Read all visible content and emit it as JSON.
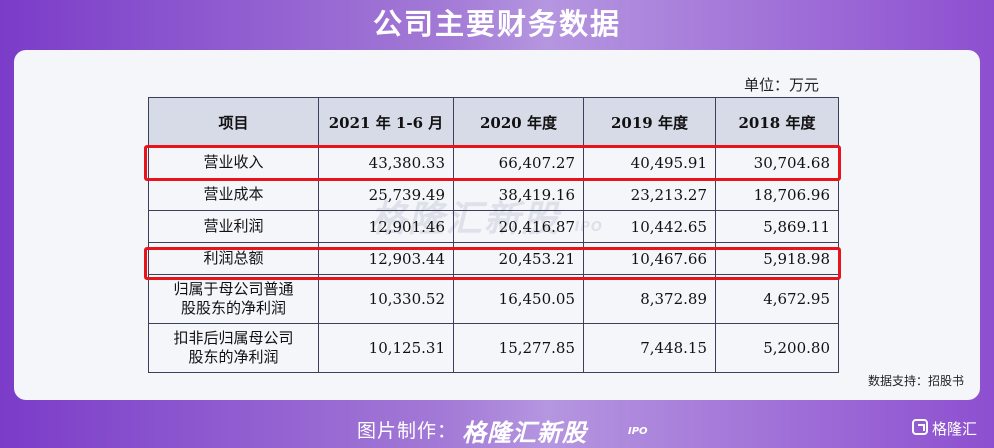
{
  "title": "公司主要财务数据",
  "unit": "单位：万元",
  "watermark": {
    "brand": "格隆汇新股",
    "tag": "IPO"
  },
  "table": {
    "headers": [
      "项目",
      "2021 年 1-6 月",
      "2020 年度",
      "2019 年度",
      "2018 年度"
    ],
    "rows": [
      {
        "label": "营业收入",
        "values": [
          "43,380.33",
          "66,407.27",
          "40,495.91",
          "30,704.68"
        ],
        "highlighted": true
      },
      {
        "label": "营业成本",
        "values": [
          "25,739.49",
          "38,419.16",
          "23,213.27",
          "18,706.96"
        ],
        "highlighted": false
      },
      {
        "label": "营业利润",
        "values": [
          "12,901.46",
          "20,416.87",
          "10,442.65",
          "5,869.11"
        ],
        "highlighted": false
      },
      {
        "label": "利润总额",
        "values": [
          "12,903.44",
          "20,453.21",
          "10,467.66",
          "5,918.98"
        ],
        "highlighted": true
      },
      {
        "label_line1": "归属于母公司普通",
        "label_line2": "股股东的净利润",
        "values": [
          "10,330.52",
          "16,450.05",
          "8,372.89",
          "4,672.95"
        ],
        "highlighted": false
      },
      {
        "label_line1": "扣非后归属母公司",
        "label_line2": "股东的净利润",
        "values": [
          "10,125.31",
          "15,277.85",
          "7,448.15",
          "5,200.80"
        ],
        "highlighted": false
      }
    ]
  },
  "highlight_color": "#e8141c",
  "source": "数据支持：招股书",
  "footer": {
    "made_by": "图片制作：",
    "brand": "格隆汇新股",
    "brand_tag": "IPO",
    "logo_text": "格隆汇",
    "logo_icon": "gelonghui-logo-icon"
  }
}
